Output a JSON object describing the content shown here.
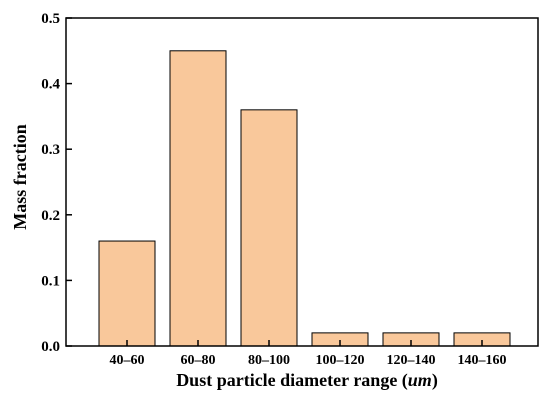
{
  "chart_data": {
    "type": "bar",
    "title": "",
    "xlabel_main": "Dust particle diameter range (",
    "xlabel_unit": "um",
    "xlabel_close": ")",
    "ylabel": "Mass fraction",
    "categories": [
      "40–60",
      "60–80",
      "80–100",
      "100–120",
      "120–140",
      "140–160"
    ],
    "values": [
      0.16,
      0.45,
      0.36,
      0.02,
      0.02,
      0.02
    ],
    "ylim": [
      0,
      0.5
    ],
    "yticks": [
      "0.0",
      "0.1",
      "0.2",
      "0.3",
      "0.4",
      "0.5"
    ],
    "grid": false,
    "legend": "none",
    "bar_color": "#f9c89b",
    "bar_edge_color": "#000000"
  }
}
